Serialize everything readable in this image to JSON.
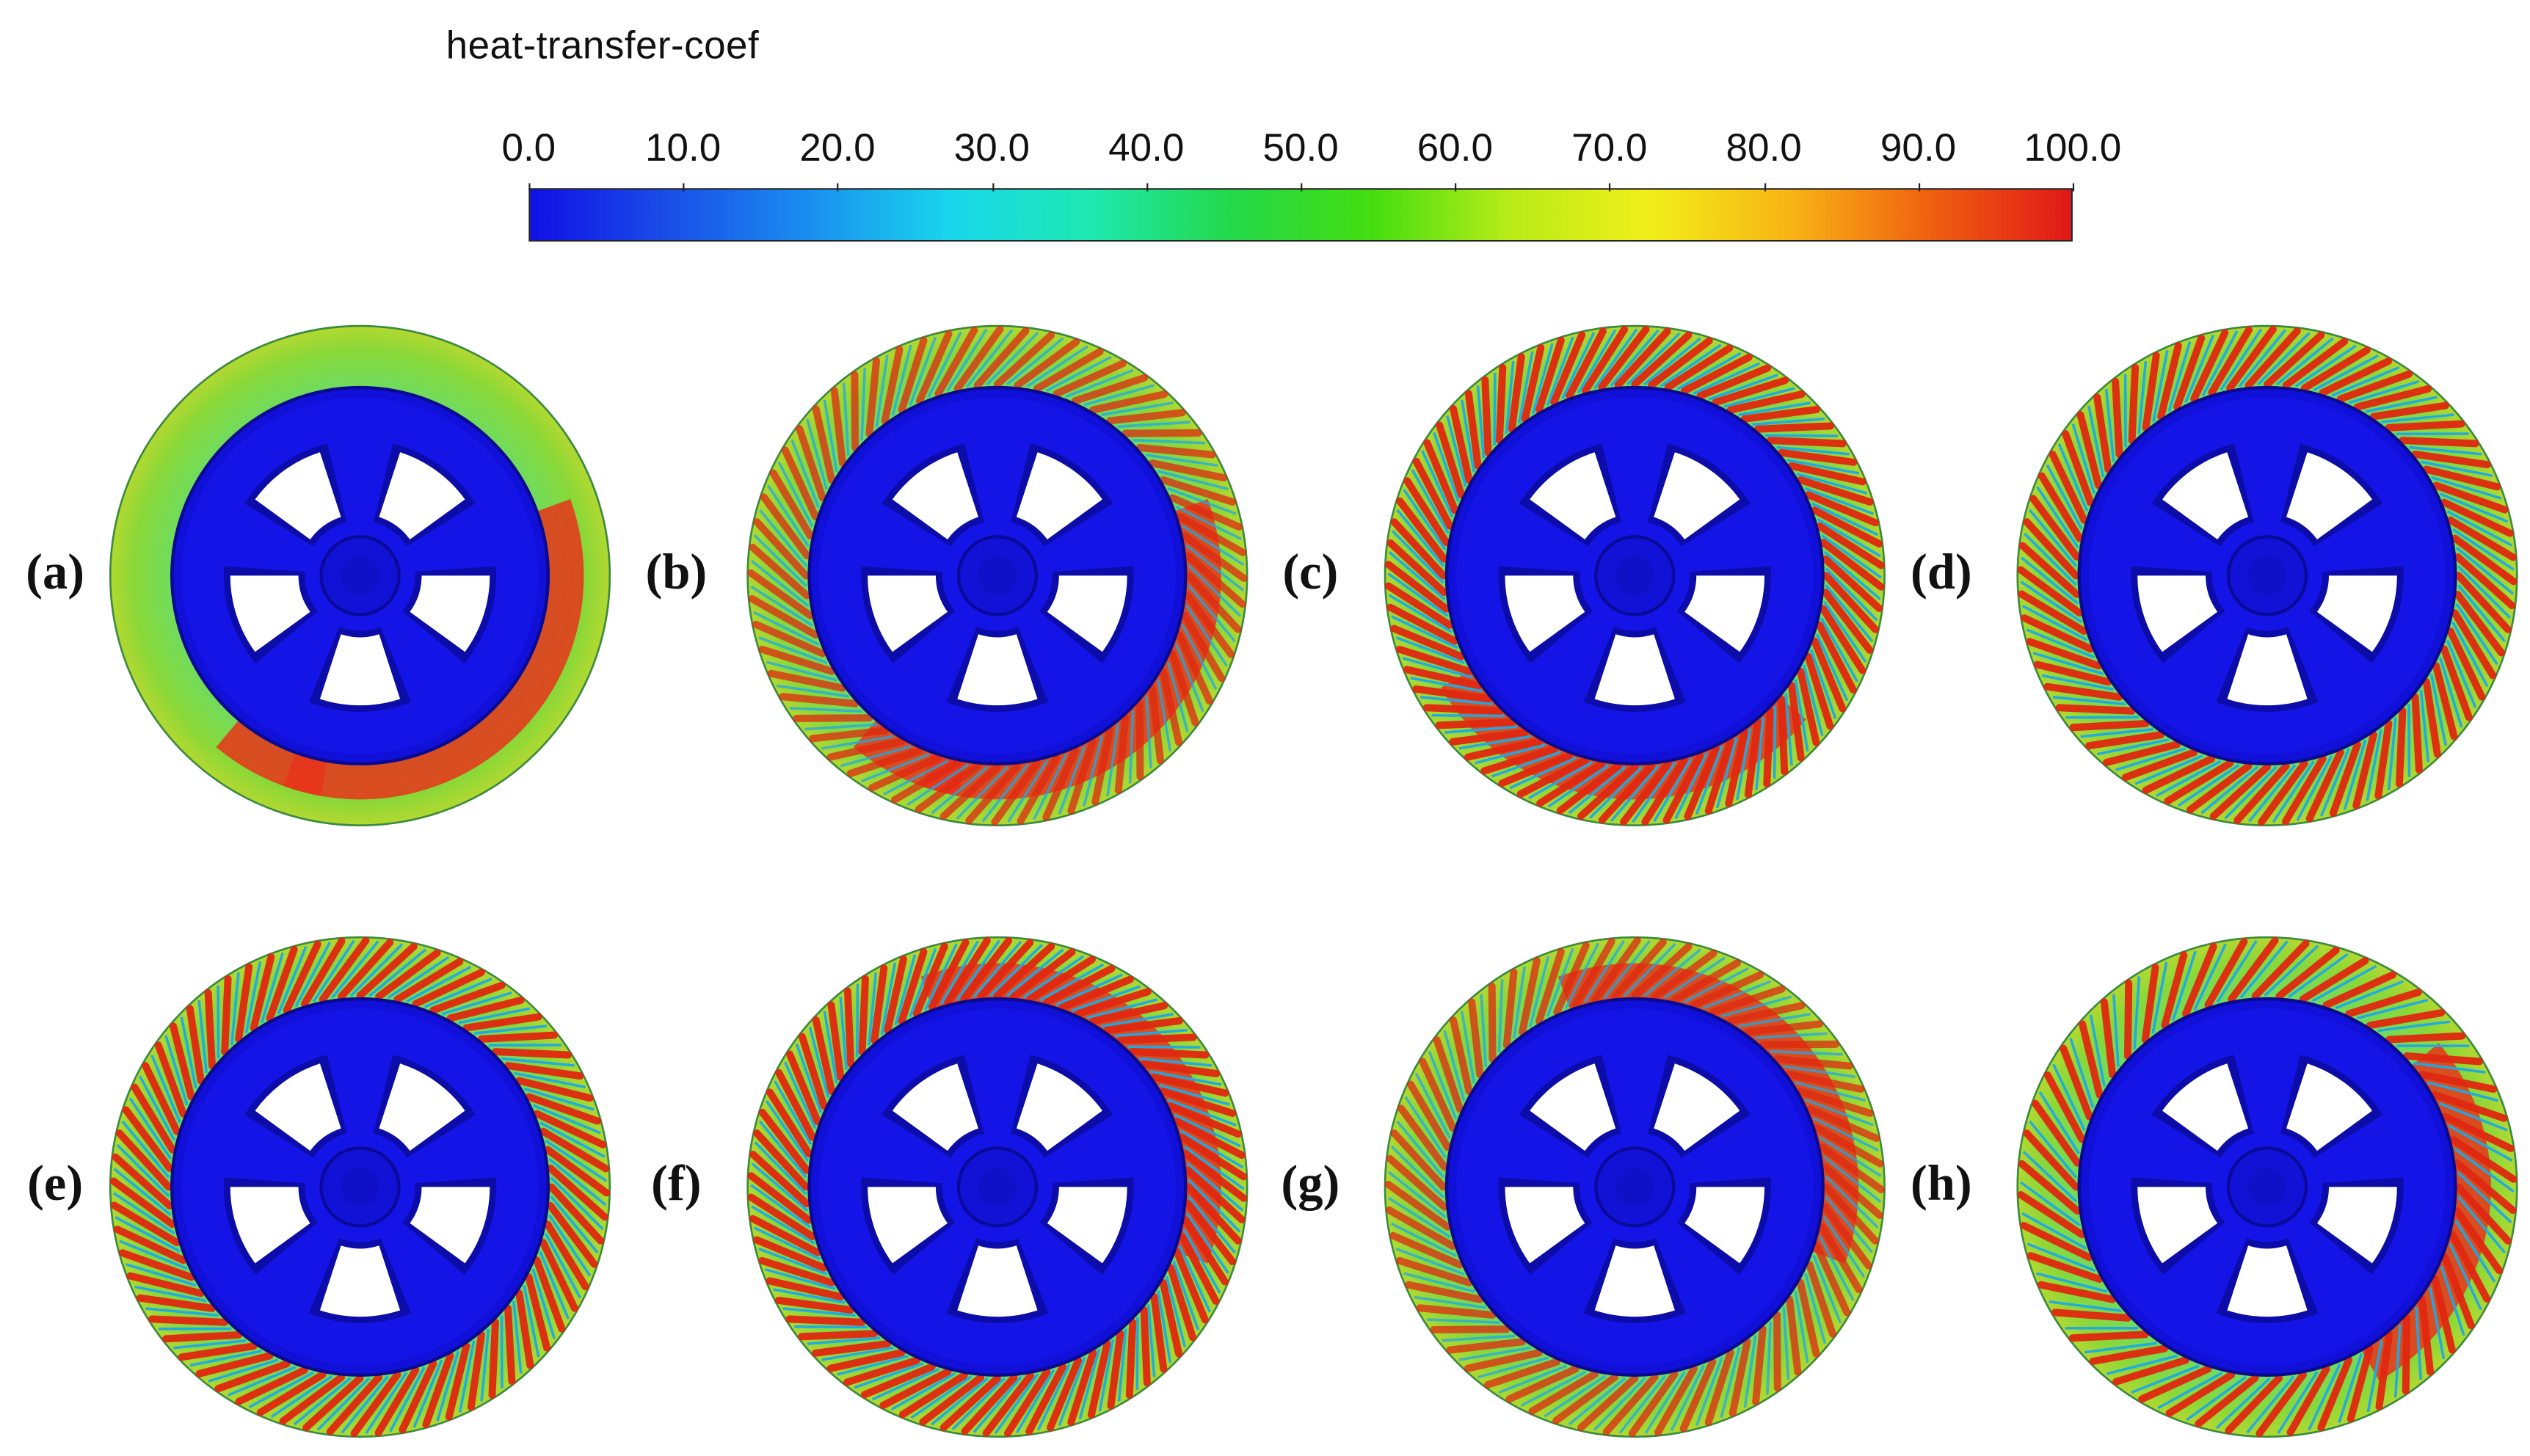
{
  "legend": {
    "title": "heat-transfer-coef",
    "ticks": [
      "0.0",
      "10.0",
      "20.0",
      "30.0",
      "40.0",
      "50.0",
      "60.0",
      "70.0",
      "80.0",
      "90.0",
      "100.0"
    ],
    "range": [
      0,
      100
    ],
    "gradient_colors": [
      "#1010e6",
      "#1a4fe8",
      "#1a8ff0",
      "#19d6ec",
      "#1ee8b0",
      "#23d84a",
      "#43dd10",
      "#b8ec18",
      "#f2ee1a",
      "#f8b414",
      "#f06010",
      "#e01818"
    ]
  },
  "panels": [
    {
      "label": "(a)",
      "pattern": "smooth",
      "hot_side": "right-bottom"
    },
    {
      "label": "(b)",
      "pattern": "partial-stripes",
      "hot_side": "right-bottom"
    },
    {
      "label": "(c)",
      "pattern": "stripes",
      "hot_side": "bottom"
    },
    {
      "label": "(d)",
      "pattern": "uniform-stripes",
      "hot_side": "all"
    },
    {
      "label": "(e)",
      "pattern": "uniform-stripes",
      "hot_side": "all"
    },
    {
      "label": "(f)",
      "pattern": "stripes",
      "hot_side": "top-right"
    },
    {
      "label": "(g)",
      "pattern": "partial-stripes",
      "hot_side": "top-right"
    },
    {
      "label": "(h)",
      "pattern": "smooth-stripes",
      "hot_side": "right"
    }
  ]
}
